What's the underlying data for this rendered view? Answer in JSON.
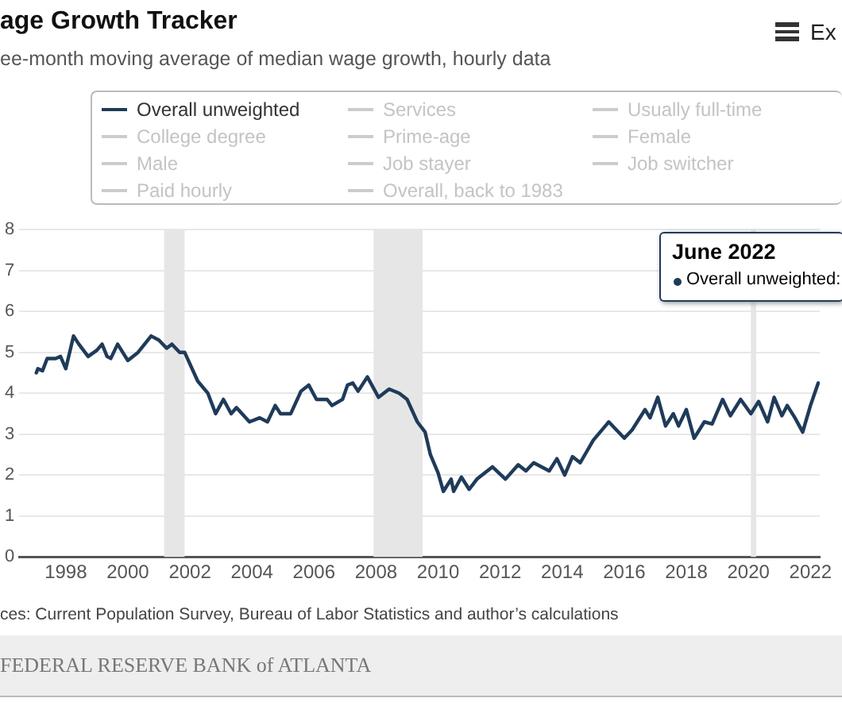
{
  "chart_data": {
    "type": "line",
    "title": "age Growth Tracker",
    "subtitle": "ee-month moving average of median wage growth, hourly data",
    "annotations": [
      "June 2022",
      "Overall unweighted:",
      "Ex",
      "ces: Current Population Survey, Bureau of Labor Statistics and author’s calculations",
      "FEDERAL RESERVE BANK of ATLANTA"
    ],
    "series": [
      {
        "name": "Overall unweighted",
        "color": "#1f3b5a",
        "x": [
          1997.05,
          1997.1,
          1997.25,
          1997.4,
          1997.67,
          1997.83,
          1998.0,
          1998.25,
          1998.42,
          1998.72,
          1999.0,
          1999.17,
          1999.33,
          1999.45,
          1999.67,
          2000.0,
          2000.33,
          2000.75,
          2001.0,
          2001.25,
          2001.42,
          2001.67,
          2001.83,
          2002.25,
          2002.58,
          2002.83,
          2003.08,
          2003.33,
          2003.5,
          2003.92,
          2004.25,
          2004.5,
          2004.75,
          2004.92,
          2005.25,
          2005.58,
          2005.83,
          2006.08,
          2006.42,
          2006.58,
          2006.92,
          2007.08,
          2007.25,
          2007.42,
          2007.72,
          2008.08,
          2008.42,
          2008.75,
          2009.0,
          2009.33,
          2009.58,
          2009.75,
          2010.0,
          2010.17,
          2010.42,
          2010.5,
          2010.75,
          2011.0,
          2011.25,
          2011.75,
          2012.17,
          2012.58,
          2012.83,
          2013.08,
          2013.58,
          2013.83,
          2014.08,
          2014.33,
          2014.58,
          2015.0,
          2015.5,
          2016.0,
          2016.25,
          2016.67,
          2016.83,
          2017.08,
          2017.33,
          2017.58,
          2017.75,
          2018.0,
          2018.25,
          2018.58,
          2018.83,
          2019.17,
          2019.42,
          2019.75,
          2020.08,
          2020.33,
          2020.62,
          2020.83,
          2021.08,
          2021.25,
          2021.5,
          2021.75,
          2022.0,
          2022.25
        ],
        "values": [
          4.5,
          4.6,
          4.55,
          4.85,
          4.85,
          4.9,
          4.6,
          5.4,
          5.2,
          4.9,
          5.05,
          5.2,
          4.9,
          4.85,
          5.2,
          4.8,
          5.0,
          5.4,
          5.3,
          5.1,
          5.2,
          5.0,
          5.0,
          4.3,
          4.0,
          3.5,
          3.85,
          3.5,
          3.65,
          3.3,
          3.4,
          3.3,
          3.7,
          3.5,
          3.5,
          4.05,
          4.2,
          3.85,
          3.85,
          3.7,
          3.85,
          4.2,
          4.25,
          4.05,
          4.4,
          3.9,
          4.1,
          4.0,
          3.85,
          3.3,
          3.05,
          2.5,
          2.05,
          1.6,
          1.9,
          1.6,
          1.95,
          1.65,
          1.9,
          2.2,
          1.9,
          2.25,
          2.1,
          2.3,
          2.1,
          2.4,
          2.0,
          2.45,
          2.3,
          2.85,
          3.3,
          2.9,
          3.1,
          3.6,
          3.4,
          3.9,
          3.2,
          3.5,
          3.2,
          3.6,
          2.9,
          3.3,
          3.25,
          3.85,
          3.45,
          3.85,
          3.5,
          3.8,
          3.3,
          3.9,
          3.45,
          3.7,
          3.4,
          3.05,
          3.7,
          4.25
        ]
      },
      {
        "name": "Services",
        "color": "#cccccc"
      },
      {
        "name": "Usually full-time",
        "color": "#cccccc"
      },
      {
        "name": "College degree",
        "color": "#cccccc"
      },
      {
        "name": "Prime-age",
        "color": "#cccccc"
      },
      {
        "name": "Female",
        "color": "#cccccc"
      },
      {
        "name": "Male",
        "color": "#cccccc"
      },
      {
        "name": "Job stayer",
        "color": "#cccccc"
      },
      {
        "name": "Job switcher",
        "color": "#cccccc"
      },
      {
        "name": "Paid hourly",
        "color": "#cccccc"
      },
      {
        "name": "Overall, back to 1983",
        "color": "#cccccc"
      }
    ],
    "xlim": [
      1996.5,
      2022.3
    ],
    "xticks": [
      1998,
      2000,
      2002,
      2004,
      2006,
      2008,
      2010,
      2012,
      2014,
      2016,
      2018,
      2020,
      2022
    ],
    "ylim": [
      0,
      8
    ],
    "yticks": [
      0,
      1,
      2,
      3,
      4,
      5,
      6,
      7,
      8
    ],
    "bands": [
      {
        "axis": "x",
        "from": 2001.17,
        "to": 2001.83,
        "color": "#e6e6e6"
      },
      {
        "axis": "x",
        "from": 2007.92,
        "to": 2009.5,
        "color": "#e6e6e6"
      },
      {
        "axis": "x",
        "from": 2020.08,
        "to": 2020.25,
        "color": "#e6e6e6"
      }
    ],
    "grid": "y",
    "legend": "top",
    "marker": "none",
    "line_style": "solid"
  }
}
